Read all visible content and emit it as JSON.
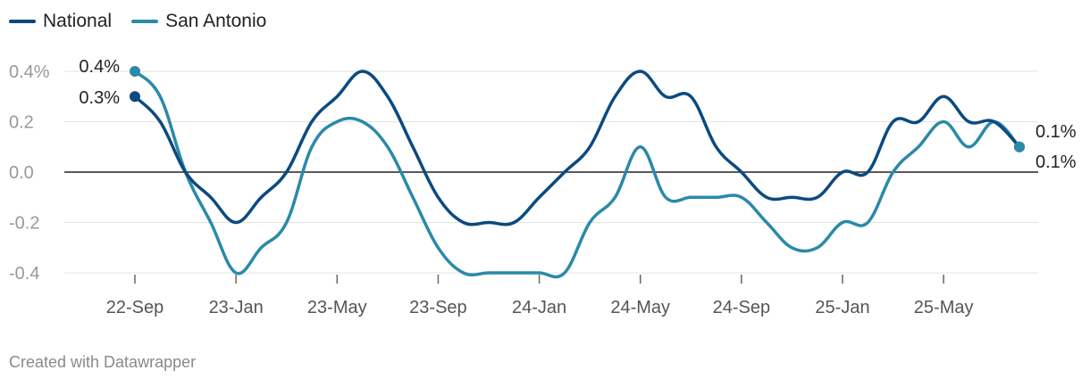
{
  "footer": "Created with Datawrapper",
  "colors": {
    "national": "#0b4a80",
    "san_antonio": "#2a8aa8",
    "grid": "#e3e3e3",
    "zero": "#222222",
    "tick_label": "#999999",
    "axis_label": "#555555"
  },
  "chart_data": {
    "type": "line",
    "title": "",
    "xlabel": "",
    "ylabel": "",
    "ylim": [
      -0.4,
      0.4
    ],
    "y_ticks": [
      {
        "value": 0.4,
        "label": "0.4%"
      },
      {
        "value": 0.2,
        "label": "0.2"
      },
      {
        "value": 0.0,
        "label": "0.0"
      },
      {
        "value": -0.2,
        "label": "-0.2"
      },
      {
        "value": -0.4,
        "label": "-0.4"
      }
    ],
    "x_categories": [
      "2022-09",
      "2022-10",
      "2022-11",
      "2022-12",
      "2023-01",
      "2023-02",
      "2023-03",
      "2023-04",
      "2023-05",
      "2023-06",
      "2023-07",
      "2023-08",
      "2023-09",
      "2023-10",
      "2023-11",
      "2023-12",
      "2024-01",
      "2024-02",
      "2024-03",
      "2024-04",
      "2024-05",
      "2024-06",
      "2024-07",
      "2024-08",
      "2024-09",
      "2024-10",
      "2024-11",
      "2024-12",
      "2025-01",
      "2025-02",
      "2025-03",
      "2025-04",
      "2025-05",
      "2025-06",
      "2025-07",
      "2025-08"
    ],
    "x_tick_labels": [
      {
        "index": 0,
        "label": "22-Sep"
      },
      {
        "index": 4,
        "label": "23-Jan"
      },
      {
        "index": 8,
        "label": "23-May"
      },
      {
        "index": 12,
        "label": "23-Sep"
      },
      {
        "index": 16,
        "label": "24-Jan"
      },
      {
        "index": 20,
        "label": "24-May"
      },
      {
        "index": 24,
        "label": "24-Sep"
      },
      {
        "index": 28,
        "label": "25-Jan"
      },
      {
        "index": 32,
        "label": "25-May"
      }
    ],
    "grid": true,
    "legend_position": "top-left",
    "series": [
      {
        "name": "National",
        "color": "#0b4a80",
        "values": [
          0.3,
          0.2,
          0.0,
          -0.1,
          -0.2,
          -0.1,
          0.0,
          0.2,
          0.3,
          0.4,
          0.3,
          0.1,
          -0.1,
          -0.2,
          -0.2,
          -0.2,
          -0.1,
          0.0,
          0.1,
          0.3,
          0.4,
          0.3,
          0.3,
          0.1,
          0.0,
          -0.1,
          -0.1,
          -0.1,
          0.0,
          0.0,
          0.2,
          0.2,
          0.3,
          0.2,
          0.2,
          0.1
        ],
        "start_label": "0.3%",
        "end_label": "0.1%"
      },
      {
        "name": "San Antonio",
        "color": "#2a8aa8",
        "values": [
          0.4,
          0.3,
          0.0,
          -0.2,
          -0.4,
          -0.3,
          -0.2,
          0.1,
          0.2,
          0.2,
          0.1,
          -0.1,
          -0.3,
          -0.4,
          -0.4,
          -0.4,
          -0.4,
          -0.4,
          -0.2,
          -0.1,
          0.1,
          -0.1,
          -0.1,
          -0.1,
          -0.1,
          -0.2,
          -0.3,
          -0.3,
          -0.2,
          -0.2,
          0.0,
          0.1,
          0.2,
          0.1,
          0.2,
          0.1
        ],
        "start_label": "0.4%",
        "end_label": "0.1%"
      }
    ]
  }
}
